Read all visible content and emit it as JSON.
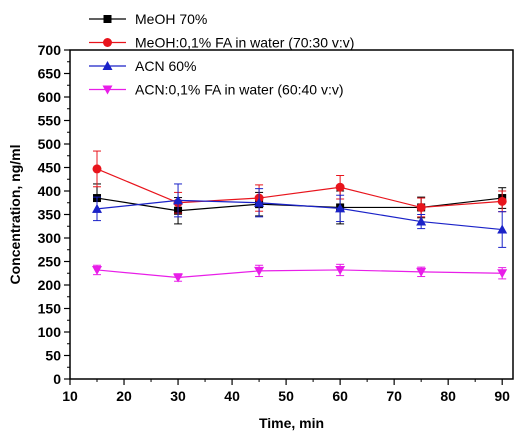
{
  "chart_data": {
    "type": "line",
    "xlabel": "Time, min",
    "ylabel": "Concentration, ng/ml",
    "xlim": [
      10,
      92
    ],
    "ylim": [
      0,
      700
    ],
    "x_ticks": [
      10,
      20,
      30,
      40,
      50,
      60,
      70,
      80,
      90
    ],
    "y_ticks": [
      0,
      50,
      100,
      150,
      200,
      250,
      300,
      350,
      400,
      450,
      500,
      550,
      600,
      650,
      700
    ],
    "x": [
      15,
      30,
      45,
      60,
      75,
      90
    ],
    "legend_position": "top-left",
    "series": [
      {
        "name": "MeOH 70%",
        "color": "#000000",
        "marker": "square",
        "values": [
          385,
          358,
          372,
          365,
          365,
          385
        ],
        "errors": [
          30,
          28,
          25,
          35,
          22,
          22
        ]
      },
      {
        "name": "MeOH:0,1% FA in water (70:30 v:v)",
        "color": "#e8141c",
        "marker": "circle",
        "values": [
          447,
          375,
          385,
          408,
          365,
          378
        ],
        "errors": [
          38,
          22,
          28,
          25,
          20,
          22
        ]
      },
      {
        "name": "ACN 60%",
        "color": "#1a22c8",
        "marker": "triangle-up",
        "values": [
          362,
          380,
          375,
          363,
          335,
          318
        ],
        "errors": [
          25,
          35,
          30,
          28,
          15,
          38
        ]
      },
      {
        "name": "ACN:0,1% FA in water (60:40 v:v)",
        "color": "#e81ee8",
        "marker": "triangle-down",
        "values": [
          232,
          216,
          230,
          232,
          228,
          225
        ],
        "errors": [
          10,
          8,
          12,
          12,
          10,
          12
        ]
      }
    ]
  }
}
